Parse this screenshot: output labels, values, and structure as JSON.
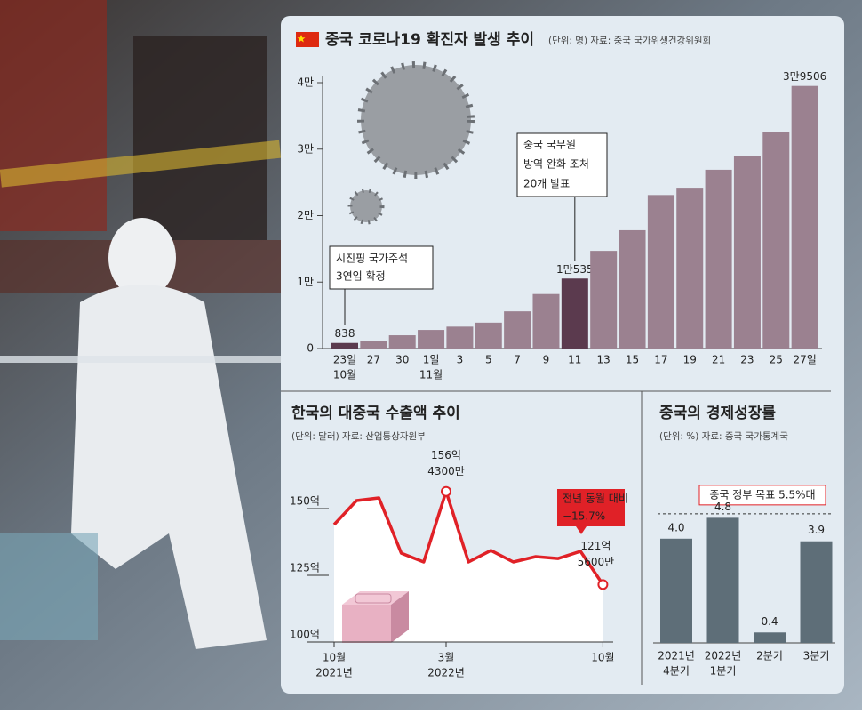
{
  "chart_data": [
    {
      "type": "bar",
      "title": "중국 코로나19 확진자 발생 추이",
      "subtitle": "(단위: 명) 자료: 중국 국가위생건강위원회",
      "categories": [
        [
          "23일",
          "10월"
        ],
        [
          "27"
        ],
        [
          "30"
        ],
        [
          "1일",
          "11월"
        ],
        [
          "3"
        ],
        [
          "5"
        ],
        [
          "7"
        ],
        [
          "9"
        ],
        [
          "11"
        ],
        [
          "13"
        ],
        [
          "15"
        ],
        [
          "17"
        ],
        [
          "19"
        ],
        [
          "21"
        ],
        [
          "23"
        ],
        [
          "25"
        ],
        [
          "27일"
        ]
      ],
      "values": [
        838,
        1200,
        2000,
        2800,
        3300,
        3900,
        5600,
        8200,
        10535,
        14700,
        17800,
        23100,
        24200,
        26900,
        28900,
        32600,
        39506
      ],
      "value_labels": [
        "838",
        null,
        null,
        null,
        null,
        null,
        null,
        null,
        "1만535",
        null,
        null,
        null,
        null,
        null,
        null,
        null,
        "3만9506"
      ],
      "colors": [
        "#5b3a4e",
        "#9b8190",
        "#9b8190",
        "#9b8190",
        "#9b8190",
        "#9b8190",
        "#9b8190",
        "#9b8190",
        "#5b3a4e",
        "#9b8190",
        "#9b8190",
        "#9b8190",
        "#9b8190",
        "#9b8190",
        "#9b8190",
        "#9b8190",
        "#9b8190"
      ],
      "ylim": [
        0,
        40000
      ],
      "yticks": [
        0,
        {
          "value": 10000,
          "label": "1만"
        },
        {
          "value": 20000,
          "label": "2만"
        },
        {
          "value": 30000,
          "label": "3만"
        },
        {
          "value": 40000,
          "label": "4만"
        }
      ],
      "annotations": [
        [
          "시진핑 국가주석",
          "3연임 확정"
        ],
        [
          "중국 국무원",
          "방역 완화 조처",
          "20개 발표"
        ]
      ]
    },
    {
      "type": "line",
      "title": "한국의 대중국 수출액 추이",
      "subtitle": "(단위: 달러) 자료: 산업통상자원부",
      "categories": [
        [
          "10월",
          "2021년"
        ],
        null,
        null,
        null,
        null,
        [
          "3월",
          "2022년"
        ],
        null,
        null,
        null,
        null,
        null,
        null,
        [
          "10월"
        ]
      ],
      "series": [
        {
          "name": null,
          "color": "#e02127",
          "values": [
            14400000000,
            15300000000,
            15400000000,
            13330000000,
            13000000000,
            15643000000,
            13000000000,
            13430000000,
            13000000000,
            13200000000,
            13130000000,
            13400000000,
            12156000000
          ],
          "value_labels": [
            null,
            null,
            null,
            null,
            null,
            [
              "156억",
              "4300만"
            ],
            null,
            null,
            null,
            null,
            null,
            null,
            [
              "121억",
              "5600만"
            ]
          ]
        }
      ],
      "ylim": [
        10000000000,
        16700000000
      ],
      "yticks": [
        {
          "value": 10000000000,
          "label": "100억"
        },
        {
          "value": 12500000000,
          "label": "125억"
        },
        {
          "value": 15000000000,
          "label": "150억"
        }
      ],
      "annotation": [
        "전년 동월 대비",
        "−15.7%"
      ]
    },
    {
      "type": "bar",
      "title": "중국의 경제성장률",
      "subtitle": "(단위: %) 자료: 중국 국가통계국",
      "categories": [
        [
          "2021년",
          "4분기"
        ],
        [
          "2022년",
          "1분기"
        ],
        [
          "2분기"
        ],
        [
          "3분기"
        ]
      ],
      "values": [
        4.0,
        4.8,
        0.4,
        3.9
      ],
      "value_labels": [
        "4.0",
        "4.8",
        "0.4",
        "3.9"
      ],
      "color": "#5e6e78",
      "ylim": [
        0,
        6
      ],
      "target": 5.5,
      "target_label": "중국 정부 목표 5.5%대"
    }
  ]
}
